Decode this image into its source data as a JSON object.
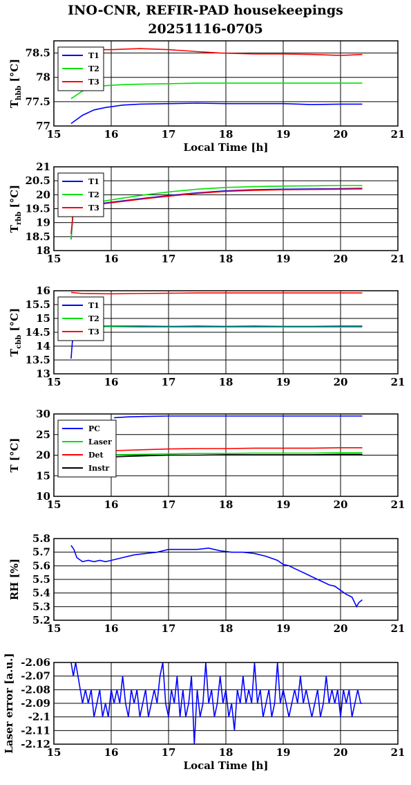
{
  "page": {
    "title_line1": "INO-CNR, REFIR-PAD housekeepings",
    "title_line2": "20251116-0705"
  },
  "chart_data": [
    {
      "type": "line",
      "ylabel": "T_hbb [°C]",
      "xlabel": "Local Time [h]",
      "xlim": [
        15,
        21
      ],
      "xticks": [
        15,
        16,
        17,
        18,
        19,
        20,
        21
      ],
      "ylim": [
        77,
        78.75
      ],
      "yticks": [
        77,
        77.5,
        78,
        78.5
      ],
      "legend_position": "top-left",
      "series": [
        {
          "name": "T1",
          "color": "#0000ff",
          "x": [
            15.3,
            15.5,
            15.7,
            15.9,
            16.2,
            16.5,
            17.0,
            17.5,
            18.0,
            18.5,
            19.0,
            19.5,
            20.0,
            20.38
          ],
          "y": [
            77.05,
            77.22,
            77.33,
            77.38,
            77.43,
            77.45,
            77.46,
            77.47,
            77.46,
            77.46,
            77.46,
            77.44,
            77.45,
            77.45
          ]
        },
        {
          "name": "T2",
          "color": "#00e000",
          "x": [
            15.3,
            15.5,
            15.7,
            15.9,
            16.2,
            16.5,
            17.0,
            17.5,
            18.0,
            18.5,
            19.0,
            19.5,
            20.0,
            20.38
          ],
          "y": [
            77.56,
            77.72,
            77.8,
            77.83,
            77.85,
            77.86,
            77.87,
            77.88,
            77.88,
            77.88,
            77.88,
            77.88,
            77.88,
            77.88
          ]
        },
        {
          "name": "T3",
          "color": "#ff0000",
          "x": [
            15.3,
            15.6,
            16.0,
            16.5,
            17.0,
            17.5,
            17.9,
            18.5,
            19.0,
            19.5,
            20.0,
            20.38
          ],
          "y": [
            78.58,
            78.57,
            78.57,
            78.59,
            78.57,
            78.53,
            78.5,
            78.48,
            78.48,
            78.47,
            78.45,
            78.47
          ]
        }
      ]
    },
    {
      "type": "line",
      "ylabel": "T_rbb [°C]",
      "xlabel": "",
      "xlim": [
        15,
        21
      ],
      "xticks": [
        15,
        16,
        17,
        18,
        19,
        20,
        21
      ],
      "ylim": [
        18,
        21
      ],
      "yticks": [
        18,
        18.5,
        19,
        19.5,
        20,
        20.5,
        21
      ],
      "legend_position": "top-left",
      "series": [
        {
          "name": "T1",
          "color": "#0000ff",
          "x": [
            15.3,
            15.33,
            15.37,
            15.5,
            15.8,
            16.2,
            16.6,
            17.0,
            17.5,
            18.0,
            18.5,
            19.0,
            19.5,
            20.0,
            20.38
          ],
          "y": [
            18.4,
            19.2,
            19.58,
            19.62,
            19.68,
            19.78,
            19.88,
            19.97,
            20.07,
            20.14,
            20.18,
            20.2,
            20.21,
            20.22,
            20.23
          ]
        },
        {
          "name": "T2",
          "color": "#00e000",
          "x": [
            15.3,
            15.33,
            15.37,
            15.5,
            15.8,
            16.2,
            16.6,
            17.0,
            17.5,
            18.0,
            18.5,
            19.0,
            19.5,
            20.0,
            20.38
          ],
          "y": [
            18.4,
            19.3,
            19.62,
            19.66,
            19.75,
            19.88,
            20.0,
            20.1,
            20.2,
            20.26,
            20.29,
            20.31,
            20.32,
            20.33,
            20.33
          ]
        },
        {
          "name": "T3",
          "color": "#ff0000",
          "x": [
            15.3,
            15.33,
            15.37,
            15.5,
            15.8,
            16.2,
            16.6,
            17.0,
            17.5,
            18.0,
            18.5,
            19.0,
            19.5,
            20.0,
            20.38
          ],
          "y": [
            18.6,
            19.25,
            19.55,
            19.6,
            19.66,
            19.76,
            19.86,
            19.95,
            20.05,
            20.12,
            20.16,
            20.18,
            20.19,
            20.2,
            20.21
          ]
        }
      ]
    },
    {
      "type": "line",
      "ylabel": "T_cbb [°C]",
      "xlabel": "",
      "xlim": [
        15,
        21
      ],
      "xticks": [
        15,
        16,
        17,
        18,
        19,
        20,
        21
      ],
      "ylim": [
        13,
        16
      ],
      "yticks": [
        13,
        13.5,
        14,
        14.5,
        15,
        15.5,
        16
      ],
      "legend_position": "top-left",
      "series": [
        {
          "name": "T1",
          "color": "#0000ff",
          "x": [
            15.3,
            15.32,
            15.34,
            15.37,
            15.5,
            16.0,
            16.5,
            17.0,
            17.5,
            18.0,
            18.5,
            19.0,
            19.5,
            20.0,
            20.38
          ],
          "y": [
            13.55,
            14.1,
            14.5,
            14.68,
            14.72,
            14.72,
            14.72,
            14.71,
            14.72,
            14.71,
            14.72,
            14.71,
            14.71,
            14.72,
            14.72
          ]
        },
        {
          "name": "T2",
          "color": "#00e000",
          "x": [
            15.3,
            15.32,
            15.35,
            15.37,
            15.5,
            16.0,
            16.5,
            17.0,
            17.5,
            18.0,
            18.5,
            19.0,
            19.5,
            20.0,
            20.38
          ],
          "y": [
            14.4,
            14.55,
            14.62,
            14.66,
            14.7,
            14.7,
            14.69,
            14.69,
            14.69,
            14.69,
            14.69,
            14.69,
            14.69,
            14.69,
            14.69
          ]
        },
        {
          "name": "T3",
          "color": "#ff0000",
          "x": [
            15.3,
            15.5,
            16.0,
            16.5,
            17.0,
            17.5,
            18.0,
            18.5,
            19.0,
            19.5,
            20.0,
            20.38
          ],
          "y": [
            15.94,
            15.9,
            15.89,
            15.9,
            15.91,
            15.92,
            15.92,
            15.92,
            15.92,
            15.92,
            15.92,
            15.92
          ]
        }
      ]
    },
    {
      "type": "line",
      "ylabel": "T [°C]",
      "xlabel": "",
      "xlim": [
        15,
        21
      ],
      "xticks": [
        15,
        16,
        17,
        18,
        19,
        20,
        21
      ],
      "ylim": [
        10,
        30
      ],
      "yticks": [
        10,
        15,
        20,
        25,
        30
      ],
      "legend_position": "top-left",
      "series": [
        {
          "name": "PC",
          "color": "#0000ff",
          "x": [
            16.05,
            16.3,
            16.6,
            17.0,
            17.5,
            18.0,
            18.5,
            19.0,
            19.5,
            20.0,
            20.38
          ],
          "y": [
            29.1,
            29.3,
            29.4,
            29.5,
            29.5,
            29.5,
            29.5,
            29.5,
            29.5,
            29.5,
            29.5
          ]
        },
        {
          "name": "Laser",
          "color": "#00e000",
          "x": [
            16.05,
            16.5,
            17.0,
            17.5,
            18.0,
            18.5,
            19.0,
            19.5,
            20.0,
            20.38
          ],
          "y": [
            20.1,
            20.2,
            20.3,
            20.4,
            20.4,
            20.5,
            20.5,
            20.5,
            20.6,
            20.6
          ]
        },
        {
          "name": "Det",
          "color": "#ff0000",
          "x": [
            16.05,
            16.5,
            17.0,
            17.5,
            18.0,
            18.5,
            19.0,
            19.5,
            20.0,
            20.38
          ],
          "y": [
            21.1,
            21.3,
            21.5,
            21.6,
            21.6,
            21.7,
            21.7,
            21.7,
            21.8,
            21.8
          ]
        },
        {
          "name": "Instr",
          "color": "#000000",
          "x": [
            16.05,
            16.5,
            17.0,
            17.5,
            18.0,
            18.5,
            19.0,
            19.5,
            20.0,
            20.38
          ],
          "y": [
            19.6,
            19.8,
            20.0,
            20.0,
            20.1,
            20.1,
            20.1,
            20.1,
            20.2,
            20.2
          ]
        }
      ]
    },
    {
      "type": "line",
      "ylabel": "RH [%]",
      "xlabel": "",
      "xlim": [
        15,
        21
      ],
      "xticks": [
        15,
        16,
        17,
        18,
        19,
        20,
        21
      ],
      "ylim": [
        5.2,
        5.8
      ],
      "yticks": [
        5.2,
        5.3,
        5.4,
        5.5,
        5.6,
        5.7,
        5.8
      ],
      "series": [
        {
          "color": "#0000ff",
          "x": [
            15.3,
            15.35,
            15.4,
            15.5,
            15.6,
            15.7,
            15.8,
            15.9,
            16.0,
            16.2,
            16.4,
            16.6,
            16.8,
            17.0,
            17.2,
            17.5,
            17.7,
            17.9,
            18.1,
            18.3,
            18.5,
            18.7,
            18.9,
            19.0,
            19.1,
            19.2,
            19.3,
            19.4,
            19.5,
            19.6,
            19.7,
            19.8,
            19.9,
            20.0,
            20.1,
            20.2,
            20.28,
            20.32,
            20.38
          ],
          "y": [
            5.75,
            5.72,
            5.66,
            5.63,
            5.64,
            5.63,
            5.64,
            5.63,
            5.64,
            5.66,
            5.68,
            5.69,
            5.7,
            5.72,
            5.72,
            5.72,
            5.73,
            5.71,
            5.7,
            5.7,
            5.69,
            5.67,
            5.64,
            5.61,
            5.6,
            5.58,
            5.56,
            5.54,
            5.52,
            5.5,
            5.48,
            5.46,
            5.45,
            5.42,
            5.39,
            5.37,
            5.3,
            5.33,
            5.35
          ]
        }
      ]
    },
    {
      "type": "line",
      "ylabel": "Laser error [a.u.]",
      "xlabel": "Local Time [h]",
      "xlim": [
        15,
        21
      ],
      "xticks": [
        15,
        16,
        17,
        18,
        19,
        20,
        21
      ],
      "ylim": [
        -2.12,
        -2.06
      ],
      "yticks": [
        -2.12,
        -2.11,
        -2.1,
        -2.09,
        -2.08,
        -2.07,
        -2.06
      ],
      "series": [
        {
          "color": "#0000ff",
          "x": [
            15.3,
            15.34,
            15.38,
            15.42,
            15.46,
            15.5,
            15.55,
            15.6,
            15.65,
            15.7,
            15.75,
            15.8,
            15.85,
            15.9,
            15.95,
            16.0,
            16.05,
            16.1,
            16.15,
            16.2,
            16.25,
            16.3,
            16.35,
            16.4,
            16.45,
            16.5,
            16.55,
            16.6,
            16.65,
            16.7,
            16.75,
            16.8,
            16.85,
            16.9,
            16.95,
            17.0,
            17.05,
            17.1,
            17.15,
            17.2,
            17.25,
            17.3,
            17.35,
            17.4,
            17.45,
            17.5,
            17.55,
            17.6,
            17.65,
            17.7,
            17.75,
            17.8,
            17.85,
            17.9,
            17.95,
            18.0,
            18.05,
            18.1,
            18.15,
            18.2,
            18.25,
            18.3,
            18.35,
            18.4,
            18.45,
            18.5,
            18.55,
            18.6,
            18.65,
            18.7,
            18.75,
            18.8,
            18.85,
            18.9,
            18.95,
            19.0,
            19.05,
            19.1,
            19.15,
            19.2,
            19.25,
            19.3,
            19.35,
            19.4,
            19.45,
            19.5,
            19.55,
            19.6,
            19.65,
            19.7,
            19.75,
            19.8,
            19.85,
            19.9,
            19.95,
            20.0,
            20.05,
            20.1,
            20.15,
            20.2,
            20.25,
            20.3,
            20.35,
            20.38
          ],
          "y": [
            -2.06,
            -2.07,
            -2.06,
            -2.07,
            -2.08,
            -2.09,
            -2.08,
            -2.09,
            -2.08,
            -2.1,
            -2.09,
            -2.08,
            -2.1,
            -2.09,
            -2.1,
            -2.08,
            -2.09,
            -2.08,
            -2.09,
            -2.07,
            -2.09,
            -2.1,
            -2.08,
            -2.09,
            -2.08,
            -2.1,
            -2.09,
            -2.08,
            -2.1,
            -2.09,
            -2.08,
            -2.09,
            -2.07,
            -2.06,
            -2.09,
            -2.1,
            -2.08,
            -2.09,
            -2.07,
            -2.1,
            -2.08,
            -2.1,
            -2.09,
            -2.07,
            -2.12,
            -2.08,
            -2.1,
            -2.09,
            -2.06,
            -2.09,
            -2.08,
            -2.1,
            -2.09,
            -2.07,
            -2.09,
            -2.08,
            -2.1,
            -2.09,
            -2.11,
            -2.08,
            -2.09,
            -2.07,
            -2.09,
            -2.08,
            -2.09,
            -2.06,
            -2.09,
            -2.08,
            -2.1,
            -2.09,
            -2.08,
            -2.1,
            -2.09,
            -2.06,
            -2.09,
            -2.08,
            -2.09,
            -2.1,
            -2.09,
            -2.08,
            -2.09,
            -2.07,
            -2.09,
            -2.08,
            -2.09,
            -2.1,
            -2.09,
            -2.08,
            -2.1,
            -2.09,
            -2.07,
            -2.09,
            -2.08,
            -2.09,
            -2.08,
            -2.1,
            -2.08,
            -2.09,
            -2.08,
            -2.1,
            -2.09,
            -2.08,
            -2.09,
            -2.09
          ]
        }
      ]
    }
  ]
}
